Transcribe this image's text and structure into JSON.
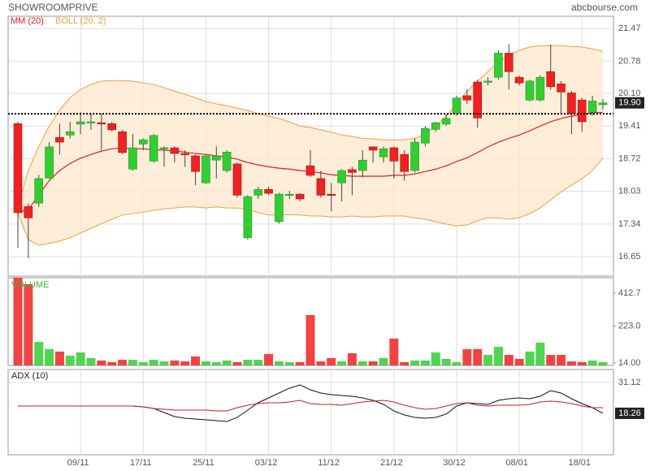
{
  "chart_data": [
    {
      "type": "candlestick",
      "title": "SHOWROOMPRIVE",
      "source": "abcbourse.com",
      "categories": [
        null,
        null,
        null,
        null,
        null,
        null,
        "09/11",
        null,
        null,
        null,
        null,
        null,
        "17/11",
        null,
        null,
        null,
        null,
        null,
        "25/11",
        null,
        null,
        null,
        null,
        null,
        "03/12",
        null,
        null,
        null,
        null,
        null,
        "11/12",
        null,
        null,
        null,
        null,
        null,
        "21/12",
        null,
        null,
        null,
        null,
        null,
        "30/12",
        null,
        null,
        null,
        null,
        null,
        "08/01",
        null,
        null,
        null,
        null,
        null,
        "18/01",
        null,
        null
      ],
      "open": [
        19.46,
        17.71,
        17.78,
        18.31,
        19.17,
        19.22,
        19.45,
        19.48,
        19.48,
        19.46,
        19.29,
        18.5,
        19.03,
        18.67,
        18.93,
        18.95,
        18.83,
        18.78,
        18.21,
        18.69,
        18.47,
        18.61,
        17.05,
        17.95,
        18.07,
        17.39,
        17.95,
        17.97,
        18.57,
        18.3,
        17.97,
        18.21,
        18.49,
        18.47,
        18.97,
        18.76,
        18.95,
        18.81,
        18.47,
        19.05,
        19.34,
        19.45,
        19.67,
        20.05,
        20.34,
        20.34,
        20.44,
        20.95,
        20.44,
        19.96,
        19.96,
        20.56,
        20.3,
        20.11,
        19.96,
        19.7,
        19.86
      ],
      "high": [
        19.5,
        17.78,
        18.38,
        19.07,
        19.46,
        19.5,
        19.7,
        19.67,
        19.67,
        19.5,
        19.33,
        19.24,
        19.15,
        19.24,
        18.98,
        18.98,
        18.9,
        18.81,
        18.81,
        18.98,
        18.9,
        18.64,
        17.95,
        18.13,
        18.13,
        18.0,
        18.04,
        17.99,
        18.9,
        18.47,
        18.21,
        18.5,
        18.55,
        18.9,
        18.98,
        18.98,
        18.98,
        18.9,
        19.15,
        19.41,
        19.5,
        19.67,
        20.05,
        20.18,
        20.39,
        20.44,
        21.01,
        21.14,
        20.48,
        20.39,
        20.48,
        21.13,
        20.36,
        20.15,
        20.01,
        20.05,
        19.98
      ],
      "low": [
        16.84,
        16.62,
        17.7,
        18.3,
        18.81,
        19.15,
        19.24,
        19.33,
        18.9,
        19.29,
        18.81,
        18.47,
        18.9,
        18.64,
        18.55,
        18.64,
        18.55,
        18.16,
        18.19,
        18.3,
        18.43,
        17.9,
        17.01,
        17.87,
        17.95,
        17.35,
        17.87,
        17.82,
        18.33,
        17.9,
        17.61,
        17.82,
        17.95,
        18.33,
        18.64,
        18.64,
        18.3,
        18.26,
        18.43,
        18.98,
        19.29,
        19.41,
        19.63,
        19.88,
        19.38,
        20.27,
        20.39,
        20.18,
        20.27,
        19.93,
        19.93,
        20.18,
        19.67,
        19.24,
        19.29,
        19.63,
        19.75
      ],
      "close": [
        17.58,
        17.47,
        18.3,
        18.97,
        19.07,
        19.29,
        19.5,
        19.5,
        19.46,
        19.33,
        18.85,
        18.95,
        19.12,
        19.21,
        18.95,
        18.83,
        18.81,
        18.45,
        18.78,
        18.78,
        18.86,
        17.95,
        17.92,
        18.07,
        17.99,
        17.97,
        17.97,
        17.87,
        18.37,
        17.95,
        17.95,
        18.47,
        18.43,
        18.69,
        18.9,
        18.93,
        18.67,
        18.45,
        19.07,
        19.36,
        19.48,
        19.57,
        20.0,
        19.96,
        19.58,
        20.36,
        20.95,
        20.56,
        20.32,
        20.36,
        20.44,
        20.24,
        20.13,
        19.67,
        19.5,
        19.94,
        19.9
      ],
      "up_color": "#33cc33",
      "down_color": "#ee2222",
      "series": [
        {
          "name": "MM (20)",
          "color": "#e02020",
          "values": [
            17.58,
            17.65,
            17.95,
            18.26,
            18.47,
            18.62,
            18.73,
            18.81,
            18.88,
            18.93,
            18.95,
            18.93,
            18.93,
            18.91,
            18.9,
            18.88,
            18.86,
            18.83,
            18.81,
            18.78,
            18.76,
            18.71,
            18.64,
            18.59,
            18.55,
            18.52,
            18.5,
            18.47,
            18.45,
            18.42,
            18.38,
            18.37,
            18.35,
            18.35,
            18.35,
            18.35,
            18.37,
            18.37,
            18.4,
            18.45,
            18.5,
            18.57,
            18.66,
            18.74,
            18.85,
            18.97,
            19.07,
            19.15,
            19.22,
            19.31,
            19.41,
            19.5,
            19.57,
            19.62,
            19.65,
            19.69,
            19.7
          ]
        }
      ],
      "bands": [
        {
          "name": "BOLL (20, 2)",
          "color": "#f0a040",
          "fill": "#fde8d0",
          "upper": [
            17.7,
            18.47,
            18.98,
            19.41,
            19.75,
            20.01,
            20.18,
            20.29,
            20.36,
            20.37,
            20.37,
            20.36,
            20.32,
            20.29,
            20.22,
            20.15,
            20.08,
            20.01,
            19.93,
            19.88,
            19.84,
            19.79,
            19.74,
            19.67,
            19.62,
            19.57,
            19.5,
            19.41,
            19.38,
            19.33,
            19.28,
            19.22,
            19.19,
            19.15,
            19.14,
            19.12,
            19.12,
            19.12,
            19.15,
            19.24,
            19.41,
            19.62,
            19.88,
            20.15,
            20.36,
            20.56,
            20.78,
            20.9,
            21.01,
            21.08,
            21.11,
            21.11,
            21.11,
            21.09,
            21.08,
            21.04,
            20.99
          ],
          "lower": [
            17.58,
            17.01,
            16.89,
            16.93,
            16.98,
            17.05,
            17.15,
            17.25,
            17.35,
            17.44,
            17.53,
            17.56,
            17.59,
            17.63,
            17.66,
            17.68,
            17.7,
            17.7,
            17.68,
            17.7,
            17.68,
            17.68,
            17.65,
            17.58,
            17.53,
            17.53,
            17.54,
            17.53,
            17.51,
            17.51,
            17.49,
            17.49,
            17.51,
            17.49,
            17.49,
            17.51,
            17.51,
            17.51,
            17.47,
            17.44,
            17.39,
            17.34,
            17.3,
            17.32,
            17.41,
            17.47,
            17.47,
            17.44,
            17.47,
            17.56,
            17.68,
            17.85,
            18.02,
            18.16,
            18.3,
            18.47,
            18.73
          ]
        }
      ],
      "reference_line": 19.67,
      "last_price": {
        "value": 19.9,
        "label": "19.90"
      },
      "ylim": [
        16.24,
        21.73
      ],
      "yticks": [
        21.47,
        20.78,
        {
          "value": 20.1,
          "label": "20.10"
        },
        19.41,
        18.72,
        18.03,
        17.34,
        16.65
      ],
      "grid": true
    },
    {
      "type": "bar",
      "title": "VOLUME",
      "color": "#33bb33",
      "values": [
        500,
        463,
        134,
        93,
        79,
        56,
        74,
        42,
        28,
        19,
        32,
        32,
        19,
        32,
        23,
        28,
        23,
        51,
        23,
        19,
        28,
        19,
        32,
        32,
        65,
        23,
        19,
        19,
        287,
        23,
        42,
        23,
        69,
        23,
        23,
        42,
        153,
        19,
        28,
        28,
        74,
        37,
        19,
        93,
        93,
        60,
        106,
        60,
        37,
        79,
        130,
        60,
        60,
        23,
        19,
        28,
        19
      ],
      "ylim": [
        0,
        500
      ],
      "yticks": [
        412.7,
        {
          "value": 223,
          "label": "223.0"
        },
        {
          "value": 14,
          "label": "14.00"
        }
      ],
      "grid": false
    },
    {
      "type": "line",
      "title": "ADX (10)",
      "series": [
        {
          "color": "#111111",
          "values": [
            21.29,
            21.29,
            21.29,
            21.29,
            21.29,
            21.29,
            21.29,
            21.29,
            21.29,
            21.29,
            21.29,
            21.29,
            20.95,
            20.28,
            18.59,
            16.9,
            16.22,
            15.88,
            15.54,
            15.21,
            14.87,
            16.56,
            19.6,
            22.64,
            24.67,
            26.7,
            28.73,
            30.08,
            28.05,
            26.7,
            26.02,
            25.68,
            25.35,
            24.67,
            23.66,
            21.97,
            19.26,
            17.57,
            16.56,
            16.22,
            16.56,
            17.91,
            21.29,
            22.64,
            22.3,
            21.97,
            23.66,
            24.33,
            24.67,
            24.33,
            25.35,
            27.71,
            26.7,
            24.33,
            22.3,
            20.61,
            18.26
          ]
        },
        {
          "color": "#c02020",
          "values": [
            21.29,
            21.29,
            21.29,
            21.29,
            21.29,
            21.29,
            21.29,
            21.29,
            21.29,
            21.29,
            21.29,
            21.29,
            20.95,
            20.28,
            19.94,
            19.6,
            19.6,
            19.6,
            19.6,
            19.26,
            19.26,
            20.61,
            21.63,
            22.3,
            22.64,
            22.64,
            22.98,
            23.66,
            22.3,
            21.97,
            21.97,
            21.63,
            22.3,
            22.98,
            23.32,
            23.66,
            22.98,
            21.63,
            20.61,
            19.94,
            20.28,
            21.29,
            22.3,
            22.64,
            21.63,
            21.29,
            21.63,
            21.63,
            21.63,
            21.97,
            22.98,
            23.32,
            22.98,
            22.3,
            21.29,
            20.61,
            20.61
          ]
        }
      ],
      "ylim": [
        1,
        36.5
      ],
      "yticks": [
        31.12
      ],
      "grid": true
    }
  ]
}
